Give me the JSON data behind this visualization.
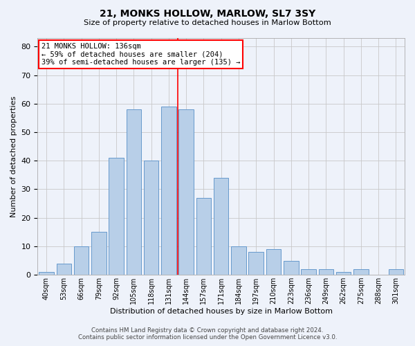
{
  "title": "21, MONKS HOLLOW, MARLOW, SL7 3SY",
  "subtitle": "Size of property relative to detached houses in Marlow Bottom",
  "xlabel": "Distribution of detached houses by size in Marlow Bottom",
  "ylabel": "Number of detached properties",
  "footer_line1": "Contains HM Land Registry data © Crown copyright and database right 2024.",
  "footer_line2": "Contains public sector information licensed under the Open Government Licence v3.0.",
  "categories": [
    "40sqm",
    "53sqm",
    "66sqm",
    "79sqm",
    "92sqm",
    "105sqm",
    "118sqm",
    "131sqm",
    "144sqm",
    "157sqm",
    "171sqm",
    "184sqm",
    "197sqm",
    "210sqm",
    "223sqm",
    "236sqm",
    "249sqm",
    "262sqm",
    "275sqm",
    "288sqm",
    "301sqm"
  ],
  "values": [
    1,
    4,
    10,
    15,
    41,
    58,
    40,
    59,
    58,
    27,
    34,
    10,
    8,
    9,
    5,
    2,
    2,
    1,
    2,
    0,
    2
  ],
  "bar_color": "#b8cfe8",
  "bar_edge_color": "#6699cc",
  "background_color": "#eef2fa",
  "grid_color": "#c8c8c8",
  "annotation_box_text": "21 MONKS HOLLOW: 136sqm\n← 59% of detached houses are smaller (204)\n39% of semi-detached houses are larger (135) →",
  "annotation_box_color": "white",
  "annotation_box_edge_color": "red",
  "vline_x": 7.5,
  "vline_color": "red",
  "ylim": [
    0,
    83
  ],
  "yticks": [
    0,
    10,
    20,
    30,
    40,
    50,
    60,
    70,
    80
  ]
}
